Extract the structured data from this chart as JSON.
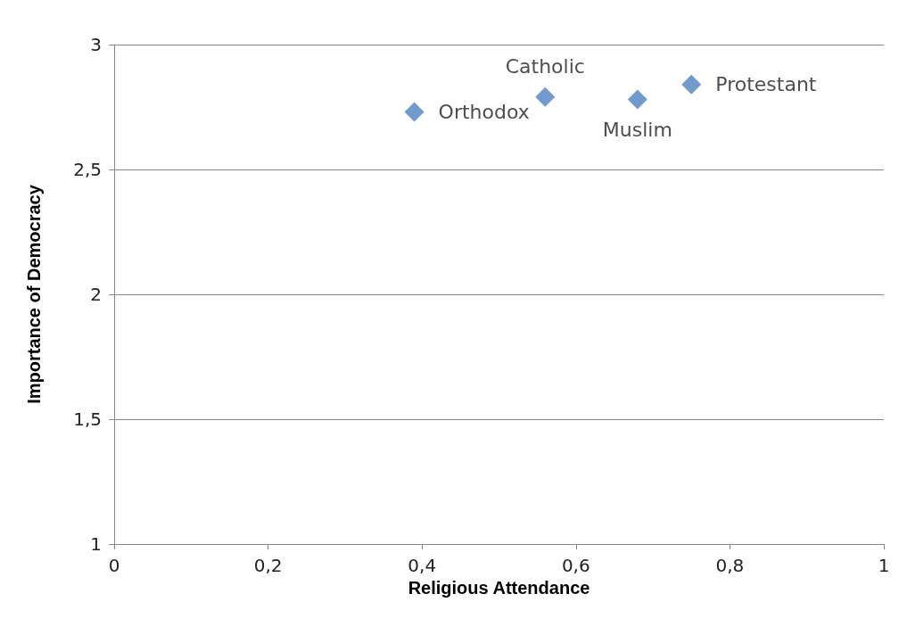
{
  "chart_data": {
    "type": "scatter",
    "xlabel": "Religious Attendance",
    "ylabel": "Importance of Democracy",
    "x": [
      0.39,
      0.56,
      0.68,
      0.75
    ],
    "values": [
      2.73,
      2.79,
      2.78,
      2.84
    ],
    "value_labels": [
      "Orthodox",
      "Catholic",
      "Muslim",
      "Protestant"
    ],
    "color": "#4f81bd",
    "marker": "diamond",
    "xlim": [
      0,
      1
    ],
    "xticks": [
      0,
      {
        "value": 0.2,
        "label": "0,2"
      },
      {
        "value": 0.4,
        "label": "0,4"
      },
      {
        "value": 0.6,
        "label": "0,6"
      },
      {
        "value": 0.8,
        "label": "0,8"
      },
      1
    ],
    "ylim": [
      1,
      3
    ],
    "yticks": [
      1,
      {
        "value": 1.5,
        "label": "1,5"
      },
      2,
      {
        "value": 2.5,
        "label": "2,5"
      },
      3
    ],
    "grid": "y"
  }
}
